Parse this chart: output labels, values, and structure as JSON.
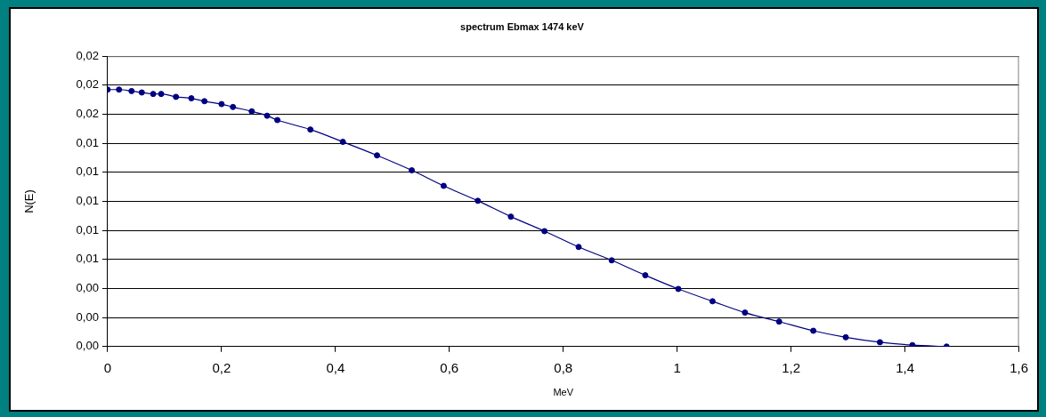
{
  "chart_data": {
    "type": "line",
    "title": "spectrum Ebmax 1474 keV",
    "xlabel": "MeV",
    "ylabel": "N(E)",
    "x": [
      0,
      0.02,
      0.042,
      0.06,
      0.08,
      0.094,
      0.12,
      0.147,
      0.17,
      0.2,
      0.22,
      0.253,
      0.28,
      0.298,
      0.356,
      0.413,
      0.473,
      0.534,
      0.59,
      0.65,
      0.708,
      0.767,
      0.827,
      0.885,
      0.944,
      1.002,
      1.062,
      1.119,
      1.179,
      1.239,
      1.296,
      1.356,
      1.413,
      1.473
    ],
    "series": [
      {
        "color": "#000080",
        "values": [
          0.0177,
          0.0177,
          0.0176,
          0.0175,
          0.0174,
          0.0174,
          0.0172,
          0.0171,
          0.0169,
          0.0167,
          0.0165,
          0.0162,
          0.0159,
          0.0156,
          0.01495,
          0.0141,
          0.01317,
          0.01214,
          0.01107,
          0.01004,
          0.00895,
          0.00795,
          0.00686,
          0.00594,
          0.00491,
          0.00397,
          0.00312,
          0.00234,
          0.00172,
          0.00109,
          0.00064,
          0.0003,
          0.0001,
          0
        ]
      }
    ],
    "xlim": [
      0,
      1.6
    ],
    "xticks": [
      0,
      {
        "value": 0.2,
        "label": "0,2"
      },
      {
        "value": 0.4,
        "label": "0,4"
      },
      {
        "value": 0.6,
        "label": "0,6"
      },
      {
        "value": 0.8,
        "label": "0,8"
      },
      1,
      {
        "value": 1.2,
        "label": "1,2"
      },
      {
        "value": 1.4,
        "label": "1,4"
      },
      {
        "value": 1.6,
        "label": "1,6"
      }
    ],
    "ylim": [
      0,
      0.02
    ],
    "yticks": [
      {
        "value": 0,
        "label": "0,00"
      },
      {
        "value": 0.002,
        "label": "0,00"
      },
      {
        "value": 0.004,
        "label": "0,00"
      },
      {
        "value": 0.006,
        "label": "0,01"
      },
      {
        "value": 0.008,
        "label": "0,01"
      },
      {
        "value": 0.01,
        "label": "0,01"
      },
      {
        "value": 0.012,
        "label": "0,01"
      },
      {
        "value": 0.014,
        "label": "0,01"
      },
      {
        "value": 0.016,
        "label": "0,02"
      },
      {
        "value": 0.018,
        "label": "0,02"
      },
      {
        "value": 0.02,
        "label": "0,02"
      }
    ],
    "grid": "y",
    "marker": "circle",
    "line_style": "solid"
  }
}
